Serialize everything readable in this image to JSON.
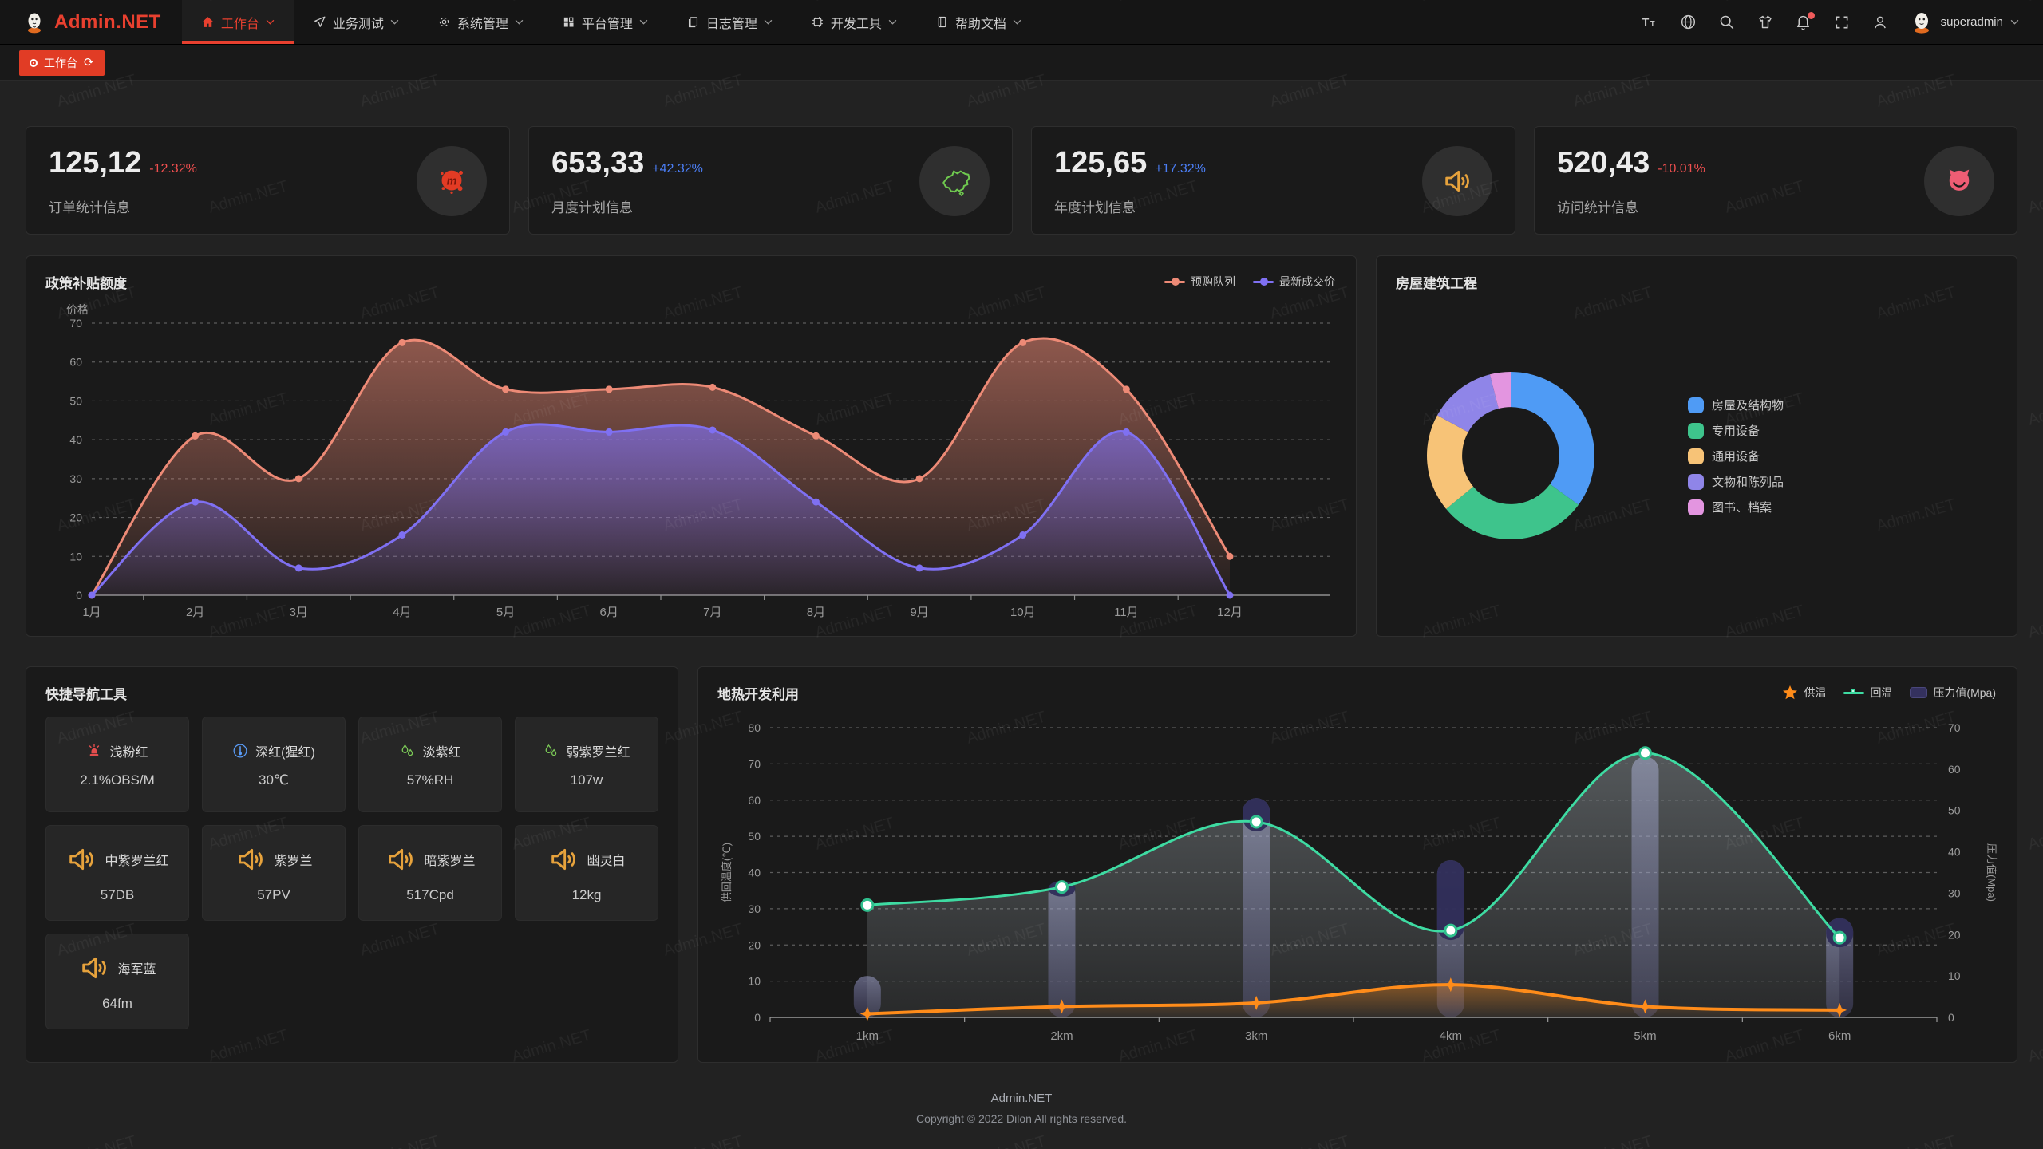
{
  "navbar": {
    "logo_text": "Admin.NET",
    "menu": [
      {
        "label": "工作台",
        "icon": "home-icon",
        "active": true
      },
      {
        "label": "业务测试",
        "icon": "navigation-icon",
        "active": false
      },
      {
        "label": "系统管理",
        "icon": "gear-icon",
        "active": false
      },
      {
        "label": "平台管理",
        "icon": "grid-icon",
        "active": false
      },
      {
        "label": "日志管理",
        "icon": "document-icon",
        "active": false
      },
      {
        "label": "开发工具",
        "icon": "chip-icon",
        "active": false
      },
      {
        "label": "帮助文档",
        "icon": "book-icon",
        "active": false
      }
    ],
    "user_name": "superadmin"
  },
  "tagsbar": {
    "active_tag": "工作台"
  },
  "stats": [
    {
      "value": "125,12",
      "delta": "-12.32%",
      "delta_color": "#ef4f4f",
      "label": "订单统计信息",
      "icon": "meetup-icon"
    },
    {
      "value": "653,33",
      "delta": "+42.32%",
      "delta_color": "#4b7ef5",
      "label": "月度计划信息",
      "icon": "china-map-icon"
    },
    {
      "value": "125,65",
      "delta": "+17.32%",
      "delta_color": "#4b7ef5",
      "label": "年度计划信息",
      "icon": "speaker-icon"
    },
    {
      "value": "520,43",
      "delta": "-10.01%",
      "delta_color": "#ef4f4f",
      "label": "访问统计信息",
      "icon": "cat-icon"
    }
  ],
  "chart_data": [
    {
      "type": "area",
      "title": "政策补贴额度",
      "ylabel": "价格",
      "ylim": [
        0,
        70
      ],
      "ytick_step": 10,
      "grid": "dashed",
      "legend_position": "top-right",
      "categories": [
        "1月",
        "2月",
        "3月",
        "4月",
        "5月",
        "6月",
        "7月",
        "8月",
        "9月",
        "10月",
        "11月",
        "12月"
      ],
      "series": [
        {
          "name": "预购队列",
          "color": "#ed8a76",
          "values": [
            0,
            41,
            30,
            65,
            53,
            53,
            53.5,
            41,
            30,
            65,
            53,
            10
          ]
        },
        {
          "name": "最新成交价",
          "color": "#7f70f2",
          "values": [
            0,
            24,
            7,
            15.5,
            42,
            42,
            42.5,
            24,
            7,
            15.5,
            42,
            0
          ]
        }
      ]
    },
    {
      "type": "pie",
      "title": "房屋建筑工程",
      "inner_radius_ratio": 0.58,
      "legend_position": "right",
      "slices": [
        {
          "name": "房屋及结构物",
          "value": 35,
          "color": "#4f9bf5"
        },
        {
          "name": "专用设备",
          "value": 29,
          "color": "#3ec48c"
        },
        {
          "name": "通用设备",
          "value": 19,
          "color": "#f7c377"
        },
        {
          "name": "文物和陈列品",
          "value": 13,
          "color": "#8f85e8"
        },
        {
          "name": "图书、档案",
          "value": 4,
          "color": "#e395e0"
        }
      ]
    },
    {
      "type": "mixed",
      "title": "地热开发利用",
      "categories": [
        "1km",
        "2km",
        "3km",
        "4km",
        "5km",
        "6km"
      ],
      "ylabel_left": "供回温度(℃)",
      "ylim_left": [
        0,
        80
      ],
      "ylabel_right": "压力值(Mpa)",
      "ylim_right": [
        0,
        70
      ],
      "grid": "dashed",
      "legend_position": "top-right",
      "series": [
        {
          "name": "供温",
          "chart": "line",
          "axis": "left",
          "color": "#ff8c1a",
          "marker": "star",
          "values": [
            1,
            3,
            4,
            9,
            3,
            2
          ]
        },
        {
          "name": "回温",
          "chart": "line",
          "axis": "left",
          "color": "#3edba2",
          "marker": "circle",
          "values": [
            31,
            36,
            54,
            24,
            73,
            22
          ]
        },
        {
          "name": "压力值(Mpa)",
          "chart": "bar",
          "axis": "right",
          "color": "#2e2b57",
          "color_light": "#9799c7",
          "values": [
            10,
            33,
            53,
            38,
            63,
            24
          ]
        }
      ]
    }
  ],
  "tools": {
    "title": "快捷导航工具",
    "items": [
      {
        "label": "浅粉红",
        "value": "2.1%OBS/M",
        "icon": "alarm-icon"
      },
      {
        "label": "深红(猩红)",
        "value": "30℃",
        "icon": "thermometer-icon"
      },
      {
        "label": "淡紫红",
        "value": "57%RH",
        "icon": "humidity-icon"
      },
      {
        "label": "弱紫罗兰红",
        "value": "107w",
        "icon": "humidity-icon"
      },
      {
        "label": "中紫罗兰红",
        "value": "57DB",
        "icon": "speaker-icon"
      },
      {
        "label": "紫罗兰",
        "value": "57PV",
        "icon": "speaker-icon"
      },
      {
        "label": "暗紫罗兰",
        "value": "517Cpd",
        "icon": "speaker-icon"
      },
      {
        "label": "幽灵白",
        "value": "12kg",
        "icon": "speaker-icon"
      },
      {
        "label": "海军蓝",
        "value": "64fm",
        "icon": "speaker-icon"
      }
    ]
  },
  "footer": {
    "line1": "Admin.NET",
    "line2": "Copyright © 2022 Dilon All rights reserved."
  },
  "watermark_text": "Admin.NET",
  "theme": {
    "brand_red": "#e8402f",
    "page_bg": "#222222",
    "card_bg": "#1a1a1a",
    "delta_up": "#4b7ef5",
    "delta_down": "#ef4f4f"
  }
}
